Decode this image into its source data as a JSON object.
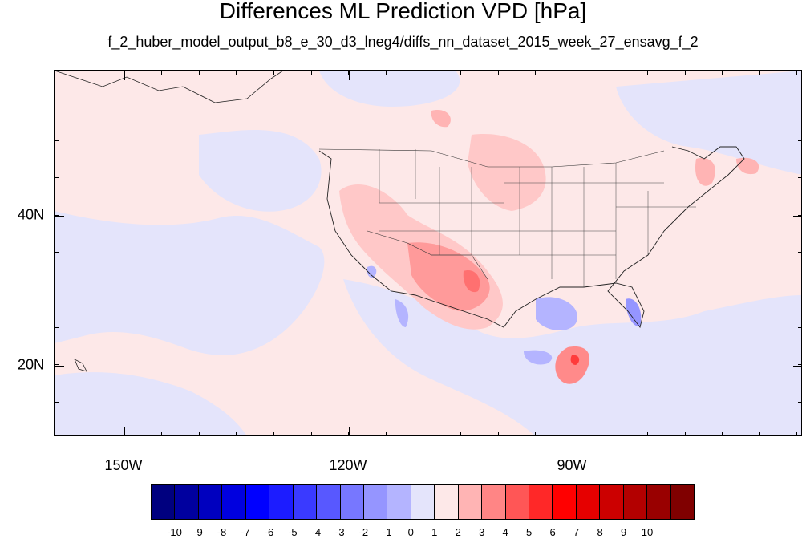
{
  "title": "Differences ML Prediction VPD [hPa]",
  "subtitle": "f_2_huber_model_output_b8_e_30_d3_lneg4/diffs_nn_dataset_2015_week_27_ensavg_f_2",
  "x_axis_labels": [
    "150W",
    "120W",
    "90W"
  ],
  "y_axis_labels": [
    "40N",
    "20N"
  ],
  "colorbar": {
    "colors": [
      "#00007f",
      "#00009f",
      "#0000bf",
      "#0000df",
      "#0000ff",
      "#1c1cff",
      "#3a3aff",
      "#5858ff",
      "#7777ff",
      "#9595ff",
      "#b4b4ff",
      "#e4e4fb",
      "#fde8e8",
      "#ffb4b4",
      "#ff8585",
      "#ff5656",
      "#ff2828",
      "#ff0000",
      "#e60000",
      "#cc0000",
      "#b30000",
      "#990000",
      "#800000"
    ],
    "labels": [
      "-10",
      "-9",
      "-8",
      "-7",
      "-6",
      "-5",
      "-4",
      "-3",
      "-2",
      "-1",
      "0",
      "1",
      "2",
      "3",
      "4",
      "5",
      "6",
      "7",
      "8",
      "9",
      "10"
    ]
  }
}
